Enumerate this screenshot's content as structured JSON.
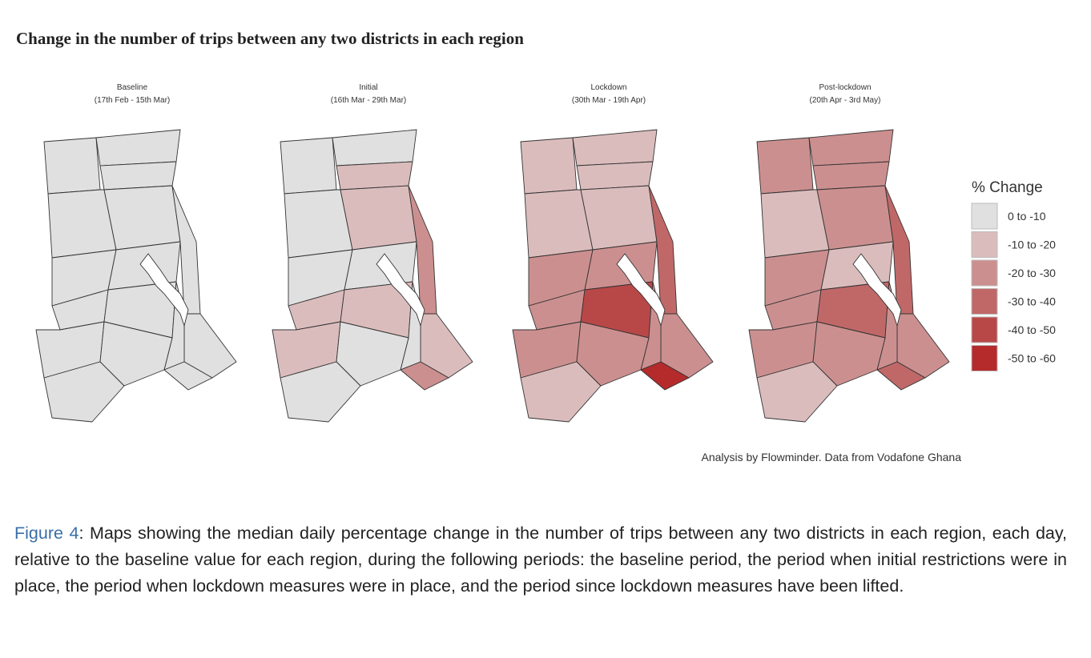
{
  "title": "Change in the number of trips between any two districts in each region",
  "maps": [
    {
      "title": "Baseline",
      "subtitle": "(17th Feb - 15th Mar)",
      "fills": [
        "#e0e0e0",
        "#e0e0e0",
        "#e0e0e0",
        "#e0e0e0",
        "#e0e0e0",
        "#e0e0e0",
        "#e0e0e0",
        "#e0e0e0",
        "#e0e0e0",
        "#e0e0e0",
        "#e0e0e0",
        "#e0e0e0",
        "#e0e0e0",
        "#e0e0e0",
        "#e0e0e0",
        "#e0e0e0"
      ]
    },
    {
      "title": "Initial",
      "subtitle": "(16th Mar - 29th Mar)",
      "fills": [
        "#e0e0e0",
        "#e0e0e0",
        "#dbbcbc",
        "#e0e0e0",
        "#dbbcbc",
        "#cc8f8f",
        "#e0e0e0",
        "#e0e0e0",
        "#dbbcbc",
        "#dbbcbc",
        "#dbbcbc",
        "#e0e0e0",
        "#dbbcbc",
        "#e0e0e0",
        "#cc8f8f",
        "#e0e0e0"
      ]
    },
    {
      "title": "Lockdown",
      "subtitle": "(30th Mar - 19th Apr)",
      "fills": [
        "#dbbcbc",
        "#dbbcbc",
        "#dbbcbc",
        "#dbbcbc",
        "#dbbcbc",
        "#c06868",
        "#cc8f8f",
        "#cc8f8f",
        "#cc8f8f",
        "#b84848",
        "#cc8f8f",
        "#cc8f8f",
        "#cc8f8f",
        "#cc8f8f",
        "#b52b2b",
        "#dbbcbc"
      ]
    },
    {
      "title": "Post-lockdown",
      "subtitle": "(20th Apr - 3rd May)",
      "fills": [
        "#cc8f8f",
        "#cc8f8f",
        "#cc8f8f",
        "#dbbcbc",
        "#cc8f8f",
        "#c06868",
        "#cc8f8f",
        "#dbbcbc",
        "#cc8f8f",
        "#c06868",
        "#cc8f8f",
        "#cc8f8f",
        "#cc8f8f",
        "#cc8f8f",
        "#c06868",
        "#dbbcbc"
      ]
    }
  ],
  "legend": {
    "title": "% Change",
    "items": [
      {
        "label": "0 to -10",
        "color": "#e0e0e0"
      },
      {
        "label": "-10 to -20",
        "color": "#dbbcbc"
      },
      {
        "label": "-20 to -30",
        "color": "#cc8f8f"
      },
      {
        "label": "-30 to -40",
        "color": "#c06868"
      },
      {
        "label": "-40 to -50",
        "color": "#b84848"
      },
      {
        "label": "-50 to -60",
        "color": "#b52b2b"
      }
    ]
  },
  "credit": "Analysis by Flowminder. Data from Vodafone Ghana",
  "caption": {
    "label": "Figure 4",
    "text": ": Maps showing the median daily percentage change in the number of trips between any two districts in each region, each day, relative to the baseline value for each region, during the following periods: the baseline period, the period when initial restrictions were in place, the period when lockdown measures were in place, and the period since lockdown measures have been lifted."
  }
}
